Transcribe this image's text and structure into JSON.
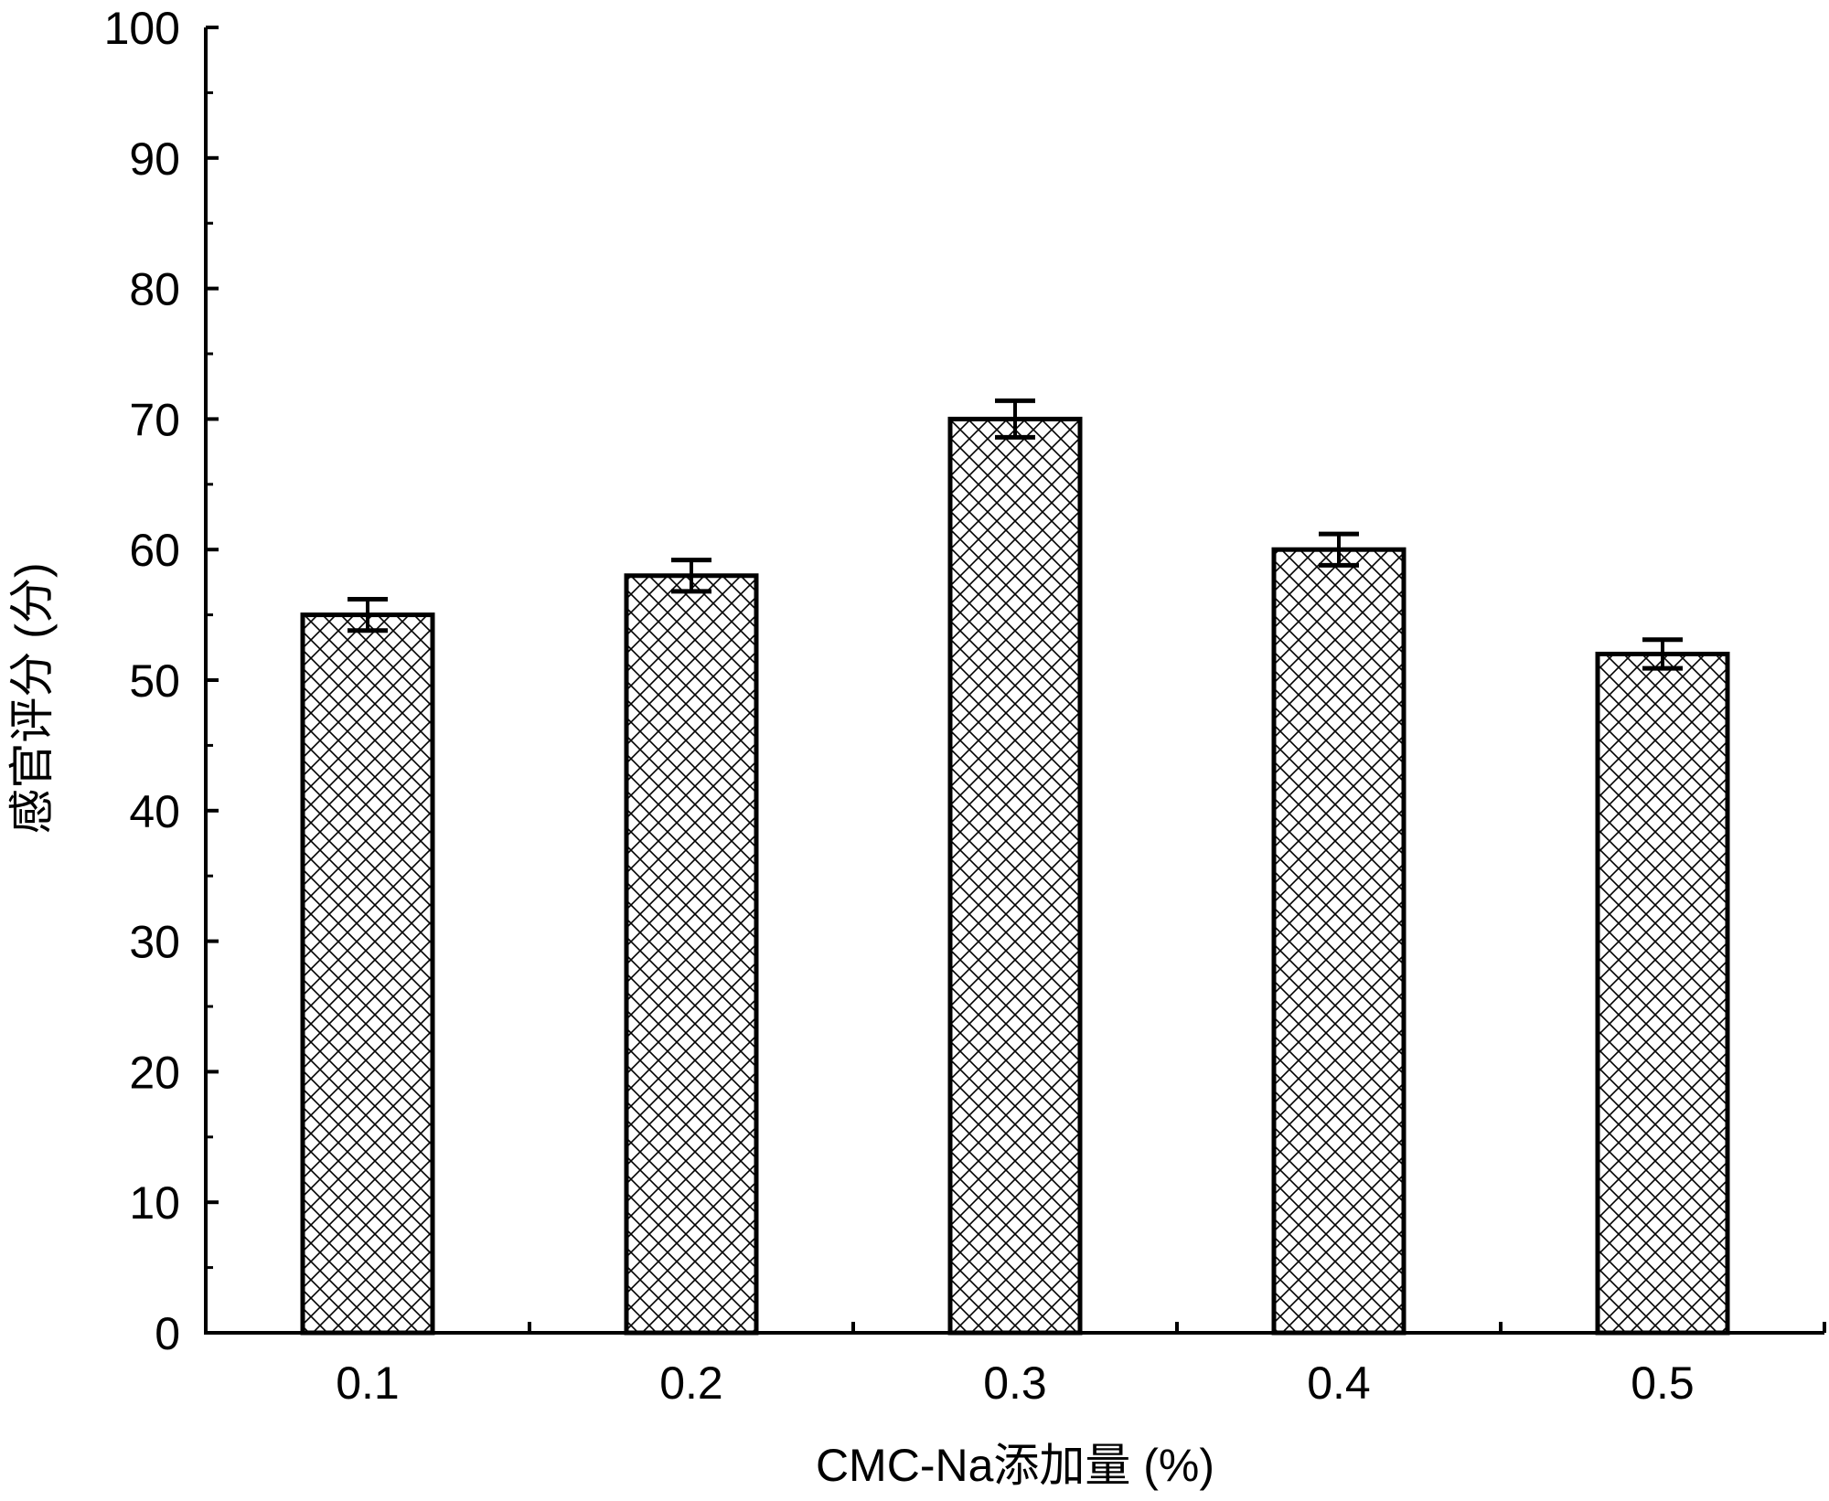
{
  "chart_data": {
    "type": "bar",
    "title": "",
    "xlabel": "CMC-Na添加量 (%)",
    "ylabel": "感官评分 (分)",
    "categories": [
      "0.1",
      "0.2",
      "0.3",
      "0.4",
      "0.5"
    ],
    "values": [
      55,
      58,
      70,
      60,
      52
    ],
    "error": [
      1.2,
      1.2,
      1.4,
      1.2,
      1.1
    ],
    "ylim": [
      0,
      100
    ],
    "yticks": [
      0,
      10,
      20,
      30,
      40,
      50,
      60,
      70,
      80,
      90,
      100
    ],
    "grid": false,
    "legend": "none",
    "bar_fill": "crosshatch",
    "colors": {
      "bar_fill": "#ffffff",
      "bar_edge": "#000000",
      "hatch": "#000000",
      "axis": "#000000"
    }
  }
}
